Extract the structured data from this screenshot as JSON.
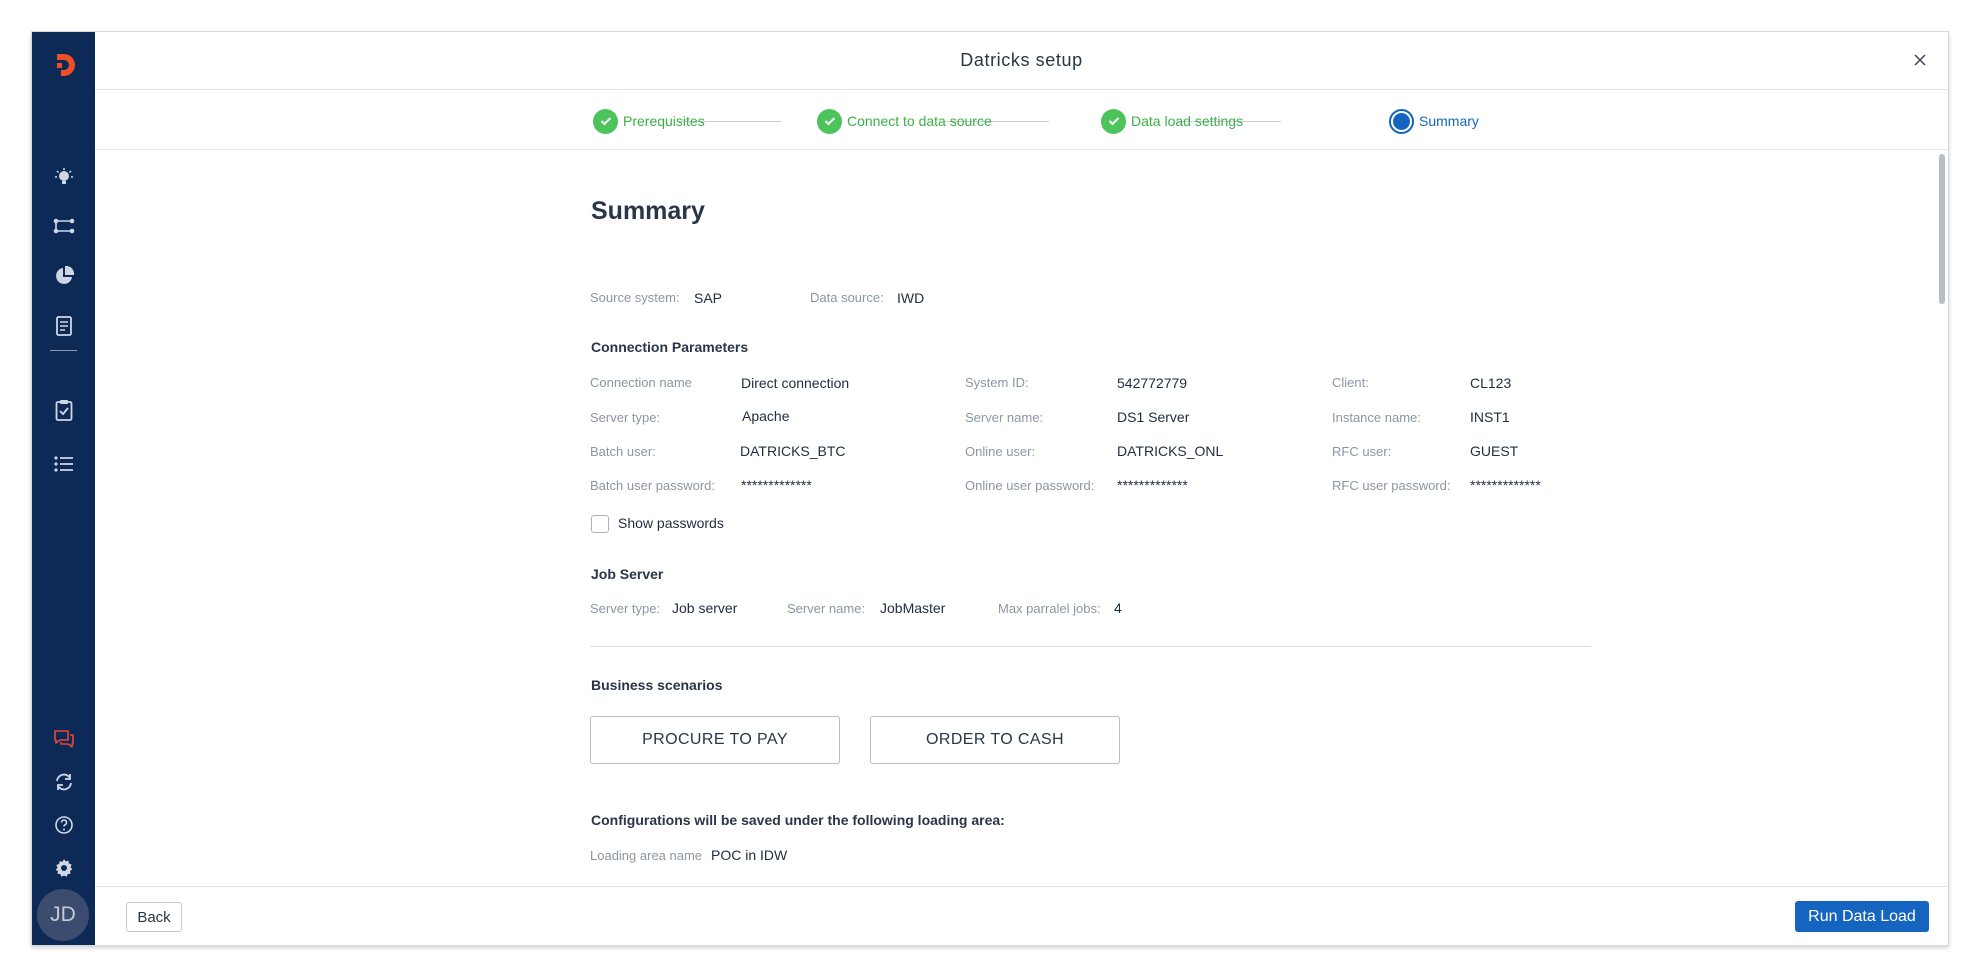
{
  "app": {
    "logo_letter": "D",
    "brand_color": "#f04e23",
    "sidebar_color": "#0d2a57",
    "accent_color": "#1565c0",
    "success_color": "#4cc45b"
  },
  "header": {
    "title": "Datricks setup",
    "close_icon": "close-icon"
  },
  "sidebar": {
    "items": [
      {
        "icon": "lightbulb-icon"
      },
      {
        "icon": "workflow-icon"
      },
      {
        "icon": "pie-chart-icon"
      },
      {
        "icon": "document-icon"
      },
      {
        "icon": "clipboard-check-icon"
      },
      {
        "icon": "list-icon"
      }
    ],
    "bottom_items": [
      {
        "icon": "chat-icon"
      },
      {
        "icon": "sync-icon"
      },
      {
        "icon": "help-icon"
      },
      {
        "icon": "gear-icon"
      }
    ],
    "avatar": "JD"
  },
  "stepper": {
    "steps": [
      {
        "label": "Prerequisites",
        "state": "done"
      },
      {
        "label": "Connect to data source",
        "state": "done"
      },
      {
        "label": "Data load settings",
        "state": "done"
      },
      {
        "label": "Summary",
        "state": "active"
      }
    ]
  },
  "summary": {
    "title": "Summary",
    "source_system_label": "Source system:",
    "source_system_value": "SAP",
    "data_source_label": "Data source:",
    "data_source_value": "IWD",
    "connection": {
      "title": "Connection Parameters",
      "rows": [
        [
          {
            "label": "Connection name",
            "value": "Direct connection"
          },
          {
            "label": "System ID:",
            "value": "542772779"
          },
          {
            "label": "Client:",
            "value": "CL123"
          }
        ],
        [
          {
            "label": "Server type:",
            "value": "Apache"
          },
          {
            "label": "Server name:",
            "value": "DS1 Server"
          },
          {
            "label": "Instance name:",
            "value": "INST1"
          }
        ],
        [
          {
            "label": "Batch user:",
            "value": "DATRICKS_BTC"
          },
          {
            "label": "Online user:",
            "value": "DATRICKS_ONL"
          },
          {
            "label": "RFC user:",
            "value": "GUEST"
          }
        ],
        [
          {
            "label": "Batch user password:",
            "value": "*************"
          },
          {
            "label": "Online user password:",
            "value": "*************"
          },
          {
            "label": "RFC user password:",
            "value": "*************"
          }
        ]
      ],
      "show_passwords_label": "Show passwords",
      "show_passwords_checked": false
    },
    "job_server": {
      "title": "Job Server",
      "server_type_label": "Server type:",
      "server_type_value": "Job server",
      "server_name_label": "Server name:",
      "server_name_value": "JobMaster",
      "max_jobs_label": "Max parralel jobs:",
      "max_jobs_value": "4"
    },
    "business_scenarios": {
      "title": "Business scenarios",
      "items": [
        "PROCURE TO PAY",
        "ORDER TO CASH"
      ]
    },
    "loading_area": {
      "title": "Configurations will be saved under the following loading area:",
      "name_label": "Loading area name",
      "name_value": "POC in IDW"
    }
  },
  "footer": {
    "back_label": "Back",
    "run_label": "Run Data Load"
  }
}
